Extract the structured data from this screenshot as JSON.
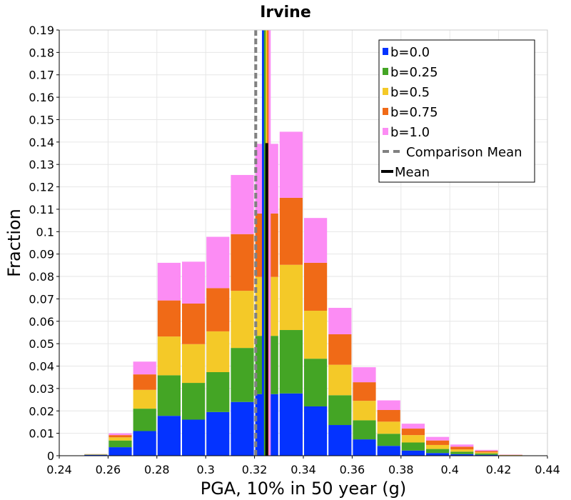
{
  "chart_data": {
    "type": "bar",
    "stacked": true,
    "title": "Irvine",
    "xlabel": "PGA, 10% in 50 year (g)",
    "ylabel": "Fraction",
    "xlim": [
      0.24,
      0.44
    ],
    "ylim": [
      0,
      0.19
    ],
    "x_ticks": [
      "0.24",
      "0.26",
      "0.28",
      "0.3",
      "0.32",
      "0.34",
      "0.36",
      "0.38",
      "0.4",
      "0.42",
      "0.44"
    ],
    "y_ticks": [
      "0",
      "0.01",
      "0.02",
      "0.03",
      "0.04",
      "0.05",
      "0.06",
      "0.07",
      "0.08",
      "0.09",
      "0.1",
      "0.11",
      "0.12",
      "0.13",
      "0.14",
      "0.15",
      "0.16",
      "0.17",
      "0.18",
      "0.19"
    ],
    "bin_width": 0.01,
    "x": [
      0.255,
      0.265,
      0.275,
      0.285,
      0.295,
      0.305,
      0.315,
      0.325,
      0.335,
      0.345,
      0.355,
      0.365,
      0.375,
      0.385,
      0.395,
      0.405,
      0.415,
      0.425
    ],
    "series": [
      {
        "name": "b=0.0",
        "color": "#0433ff",
        "values": [
          0.0004,
          0.0038,
          0.011,
          0.0178,
          0.0161,
          0.0195,
          0.024,
          0.0275,
          0.0278,
          0.022,
          0.0137,
          0.0073,
          0.0044,
          0.0023,
          0.0012,
          0.0007,
          0.0004,
          0.0001
        ]
      },
      {
        "name": "b=0.25",
        "color": "#44a525",
        "values": [
          0.0001,
          0.003,
          0.01,
          0.0181,
          0.0164,
          0.0178,
          0.0241,
          0.026,
          0.0283,
          0.0213,
          0.0133,
          0.0085,
          0.0054,
          0.0036,
          0.0018,
          0.0011,
          0.0006,
          0.0001
        ]
      },
      {
        "name": "b=0.5",
        "color": "#f4c928",
        "values": [
          0.0001,
          0.0014,
          0.0084,
          0.0173,
          0.0173,
          0.0182,
          0.0255,
          0.0263,
          0.0291,
          0.0214,
          0.0136,
          0.0087,
          0.0054,
          0.0033,
          0.0018,
          0.001,
          0.0005,
          0.0001
        ]
      },
      {
        "name": "b=0.75",
        "color": "#f06a17",
        "values": [
          0.0001,
          0.001,
          0.0069,
          0.0161,
          0.0181,
          0.0193,
          0.0253,
          0.0283,
          0.0299,
          0.0214,
          0.0136,
          0.0083,
          0.0052,
          0.0029,
          0.002,
          0.0012,
          0.0006,
          0.0001
        ]
      },
      {
        "name": "b=1.0",
        "color": "#fc8cf4",
        "values": [
          0.0,
          0.0008,
          0.0057,
          0.0168,
          0.0187,
          0.0229,
          0.0264,
          0.0311,
          0.0295,
          0.02,
          0.0118,
          0.0067,
          0.0043,
          0.0022,
          0.0016,
          0.001,
          0.0005,
          0.0001
        ]
      }
    ],
    "mean_lines": [
      {
        "name": "b=0.0",
        "x": 0.3235,
        "color": "#0433ff"
      },
      {
        "name": "b=0.25",
        "x": 0.3243,
        "color": "#44a525"
      },
      {
        "name": "b=0.5",
        "x": 0.325,
        "color": "#f4c928"
      },
      {
        "name": "b=0.75",
        "x": 0.3256,
        "color": "#f06a17"
      },
      {
        "name": "b=1.0",
        "x": 0.3262,
        "color": "#fc8cf4"
      }
    ],
    "comparison_mean": {
      "name": "Comparison Mean",
      "x": 0.3205,
      "color": "#808080"
    },
    "mean": {
      "name": "Mean",
      "x": 0.325,
      "color": "#000000"
    },
    "legend": {
      "position": "top-right",
      "entries": [
        {
          "label": "b=0.0",
          "color": "#0433ff",
          "style": "square"
        },
        {
          "label": "b=0.25",
          "color": "#44a525",
          "style": "square"
        },
        {
          "label": "b=0.5",
          "color": "#f4c928",
          "style": "square"
        },
        {
          "label": "b=0.75",
          "color": "#f06a17",
          "style": "square"
        },
        {
          "label": "b=1.0",
          "color": "#fc8cf4",
          "style": "square"
        },
        {
          "label": "Comparison Mean",
          "color": "#808080",
          "style": "dashed"
        },
        {
          "label": "Mean",
          "color": "#000000",
          "style": "line"
        }
      ]
    },
    "grid": true
  }
}
